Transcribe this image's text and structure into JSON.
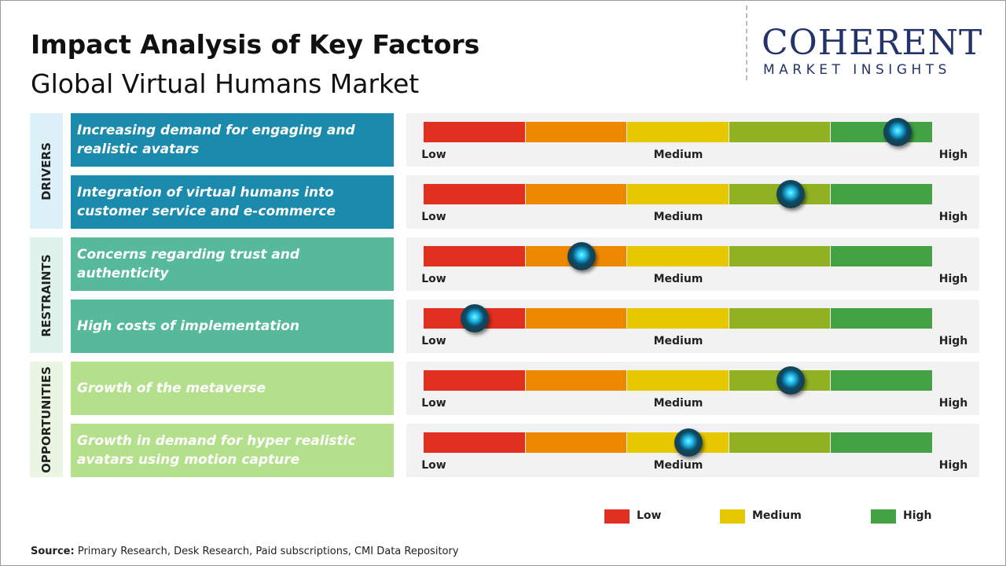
{
  "title": "Impact Analysis of Key Factors",
  "subtitle": "Global Virtual Humans Market",
  "logo": {
    "name": "COHERENT",
    "tagline": "MARKET INSIGHTS"
  },
  "scale": {
    "xlim": [
      0,
      100
    ],
    "labels": [
      "Low",
      "Medium",
      "High"
    ],
    "segment_colors": [
      "#e1301f",
      "#ee8800",
      "#e6c700",
      "#8fb122",
      "#43a343"
    ]
  },
  "groups": [
    {
      "name": "DRIVERS",
      "color": "#1a8aad",
      "band": "#dcf0f8",
      "text_color": "#ffffff",
      "factors": [
        {
          "label": "Increasing demand for engaging and realistic avatars",
          "impact": 93
        },
        {
          "label": "Integration of virtual humans into customer service and e-commerce",
          "impact": 72
        }
      ]
    },
    {
      "name": "RESTRAINTS",
      "color": "#55b99a",
      "band": "#dff2ec",
      "text_color": "#ffffff",
      "factors": [
        {
          "label": "Concerns regarding trust and authenticity",
          "impact": 31
        },
        {
          "label": "High costs of implementation",
          "impact": 10
        }
      ]
    },
    {
      "name": "OPPORTUNITIES",
      "color": "#b4e08c",
      "band": "#eaf6e2",
      "text_color": "#ffffff",
      "factors": [
        {
          "label": "Growth of the metaverse",
          "impact": 72
        },
        {
          "label": "Growth in demand for hyper realistic avatars using motion capture",
          "impact": 52
        }
      ]
    }
  ],
  "legend": [
    {
      "name": "Low",
      "color": "#e1301f"
    },
    {
      "name": "Medium",
      "color": "#e6c700"
    },
    {
      "name": "High",
      "color": "#43a343"
    }
  ],
  "source": {
    "label": "Source:",
    "text": "Primary Research, Desk Research, Paid subscriptions, CMI Data Repository"
  }
}
